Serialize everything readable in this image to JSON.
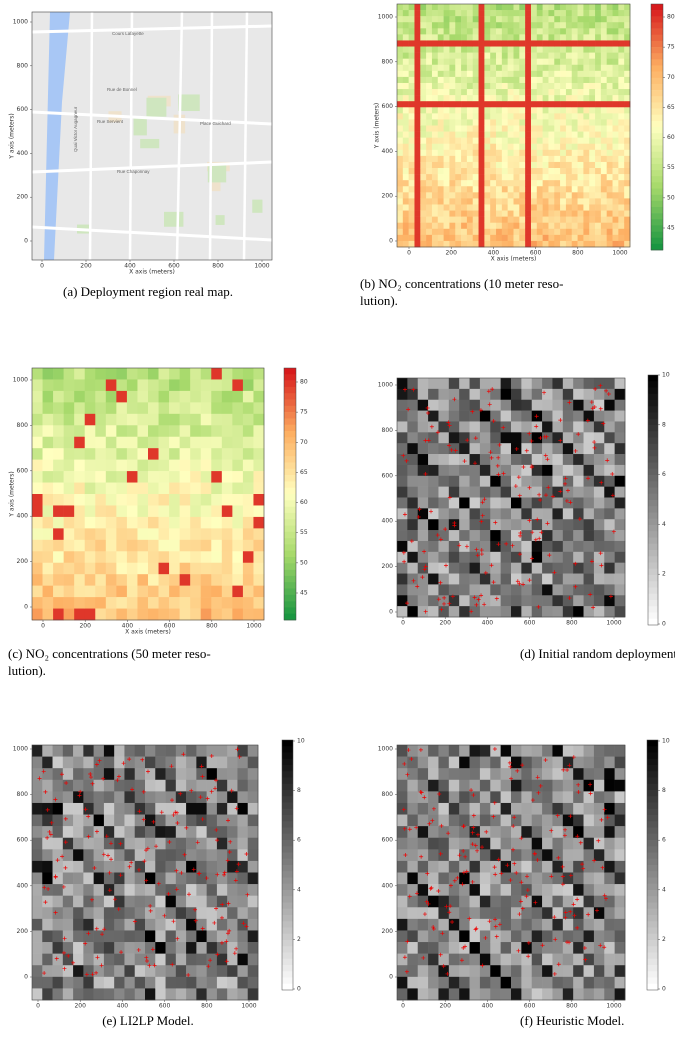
{
  "panels": [
    {
      "caption": "(a) Deployment region real map.",
      "x_label": "X axis (meters)",
      "y_label": "Y axis (meters)",
      "xticks": [
        0,
        200,
        400,
        600,
        800,
        1000
      ],
      "yticks": [
        0,
        200,
        400,
        600,
        800,
        1000
      ],
      "map_labels": [
        "Cours Lafayette",
        "Rue de Bonnel",
        "Rue Servient",
        "Rue Chaponnay",
        "Place Guichard",
        "Quai Victor Augagneur"
      ]
    },
    {
      "caption": "(b) NO₂ concentrations (10 meter resolution).",
      "x_label": "X axis (meters)",
      "y_label": "Y axis (meters)",
      "xticks": [
        0,
        200,
        400,
        600,
        800,
        1000
      ],
      "yticks": [
        0,
        200,
        400,
        600,
        800,
        1000
      ],
      "colorbar_ticks": [
        45,
        50,
        55,
        60,
        65,
        70,
        75,
        80
      ]
    },
    {
      "caption": "(c) NO₂ concentrations (50 meter resolution).",
      "x_label": "X axis (meters)",
      "y_label": "Y axis (meters)",
      "xticks": [
        0,
        200,
        400,
        600,
        800,
        1000
      ],
      "yticks": [
        0,
        200,
        400,
        600,
        800,
        1000
      ],
      "colorbar_ticks": [
        45,
        50,
        55,
        60,
        65,
        70,
        75,
        80
      ]
    },
    {
      "caption": "(d) Initial random deployment.",
      "xticks": [
        0,
        200,
        400,
        600,
        800,
        1000
      ],
      "yticks": [
        0,
        200,
        400,
        600,
        800,
        1000
      ],
      "colorbar_ticks": [
        0,
        2,
        4,
        6,
        8,
        10
      ]
    },
    {
      "caption": "(e) LI2LP Model.",
      "xticks": [
        0,
        200,
        400,
        600,
        800,
        1000
      ],
      "yticks": [
        0,
        200,
        400,
        600,
        800,
        1000
      ],
      "colorbar_ticks": [
        0,
        2,
        4,
        6,
        8,
        10
      ]
    },
    {
      "caption": "(f) Heuristic Model.",
      "xticks": [
        0,
        200,
        400,
        600,
        800,
        1000
      ],
      "yticks": [
        0,
        200,
        400,
        600,
        800,
        1000
      ],
      "colorbar_ticks": [
        0,
        2,
        4,
        6,
        8,
        10
      ]
    }
  ]
}
